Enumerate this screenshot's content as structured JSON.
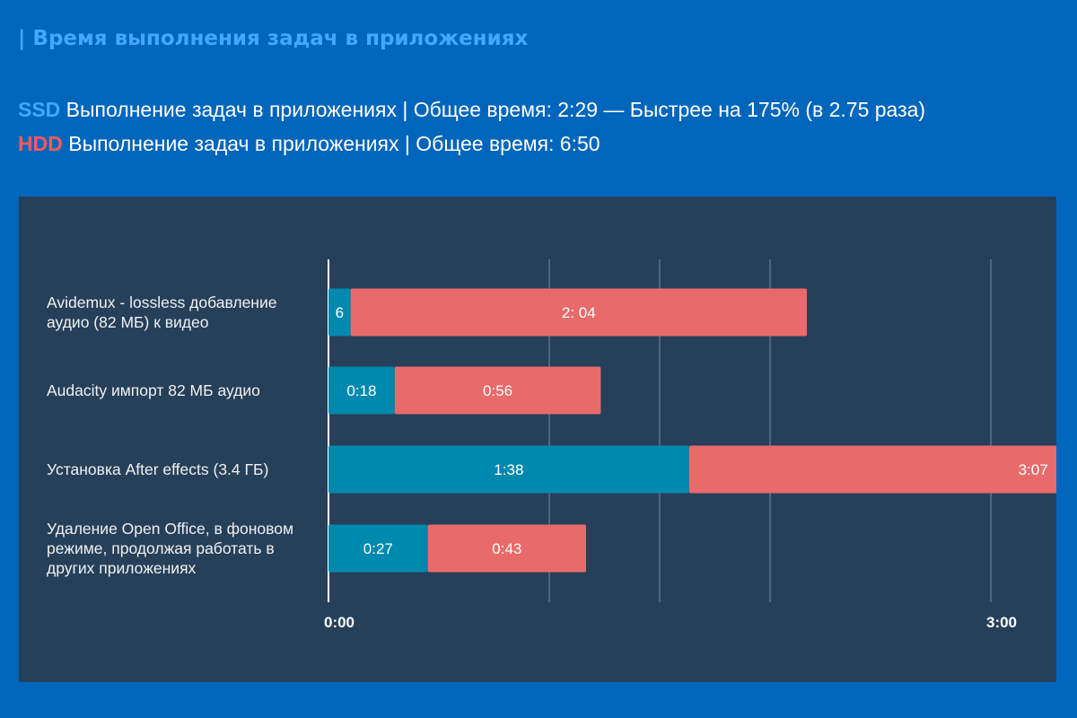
{
  "title": "| Время выполнения задач в приложениях",
  "legend": {
    "ssd_tag": "SSD",
    "ssd_text": " Выполнение задач в приложениях | Общее время: 2:29 — Быстрее на 175% (в 2.75 раза)",
    "hdd_tag": "HDD",
    "hdd_text": " Выполнение задач в приложениях | Общее время: 6:50"
  },
  "colors": {
    "background": "#0066bb",
    "panel": "#26405a",
    "ssd": "#0089ae",
    "hdd": "#e96a6a",
    "title": "#3fa9ff"
  },
  "chart_data": {
    "type": "bar",
    "orientation": "horizontal",
    "stacked": true,
    "title": "Время выполнения задач в приложениях",
    "xlim_seconds": [
      0,
      180
    ],
    "gridlines_seconds": [
      60,
      90,
      120,
      180
    ],
    "ticks": [
      {
        "value": 0,
        "label": "0:00"
      },
      {
        "value": 180,
        "label": "3:00"
      }
    ],
    "categories": [
      [
        "Avidemux - lossless добавление",
        "аудио (82 МБ) к видео"
      ],
      [
        "Audacity импорт 82 МБ аудио"
      ],
      [
        "Установка After effects (3.4 ГБ)"
      ],
      [
        "Удаление Open Office, в фоновом",
        "режиме, продолжая работать в",
        "других приложениях"
      ]
    ],
    "series": [
      {
        "name": "SSD",
        "color": "#0089ae",
        "values": [
          6,
          18,
          98,
          27
        ],
        "labels": [
          "6",
          "0:18",
          "1:38",
          "0:27"
        ]
      },
      {
        "name": "HDD",
        "color": "#e96a6a",
        "values": [
          124,
          56,
          187,
          43
        ],
        "labels": [
          "2: 04",
          "0:56",
          "3:07",
          "0:43"
        ]
      }
    ]
  }
}
